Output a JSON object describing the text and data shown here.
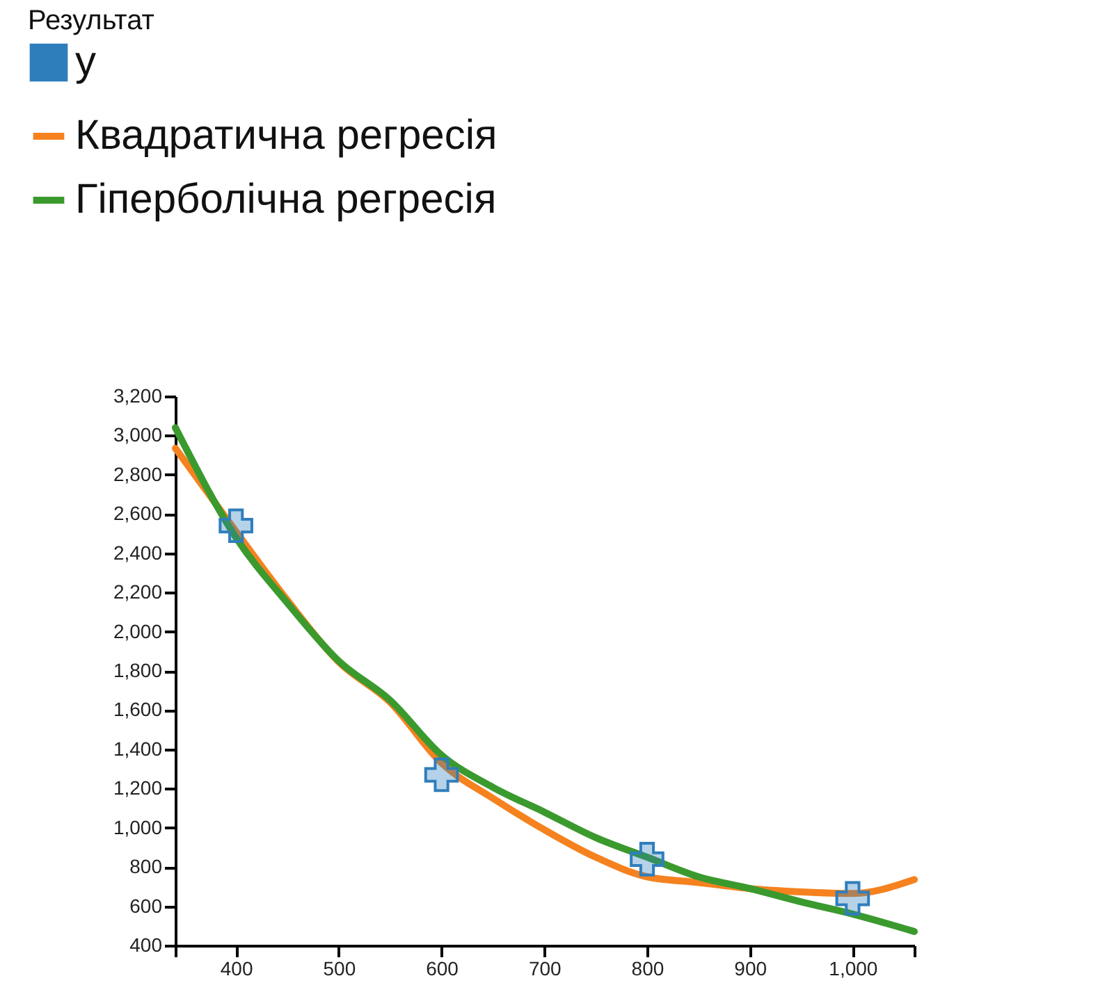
{
  "chart_data": {
    "type": "scatter",
    "legend_title": "Результат",
    "legend": "top left",
    "grid": false,
    "xlim": [
      341,
      1060
    ],
    "xticks": [
      {
        "value": 341,
        "label": null
      },
      400,
      500,
      600,
      700,
      800,
      900,
      {
        "value": 1000,
        "label": "1,000"
      },
      {
        "value": 1060,
        "label": null
      }
    ],
    "ylim": [
      400,
      3200
    ],
    "yticks": [
      400,
      600,
      800,
      {
        "value": 1000,
        "label": "1,000"
      },
      {
        "value": 1200,
        "label": "1,200"
      },
      {
        "value": 1400,
        "label": "1,400"
      },
      {
        "value": 1600,
        "label": "1,600"
      },
      {
        "value": 1800,
        "label": "1,800"
      },
      {
        "value": 2000,
        "label": "2,000"
      },
      {
        "value": 2200,
        "label": "2,200"
      },
      {
        "value": 2400,
        "label": "2,400"
      },
      {
        "value": 2600,
        "label": "2,600"
      },
      {
        "value": 2800,
        "label": "2,800"
      },
      {
        "value": 3000,
        "label": "3,000"
      },
      {
        "value": 3200,
        "label": "3,200"
      }
    ],
    "series": [
      {
        "name": "y",
        "type": "scatter",
        "marker": "cross",
        "color": "#2f7ebc",
        "x": [
          400,
          600,
          800,
          1000
        ],
        "values": [
          2540,
          1270,
          840,
          640
        ]
      },
      {
        "name": "Квадратична регресія",
        "type": "line",
        "line_style": "solid",
        "color": "#f5821f",
        "x": [
          341,
          400,
          450,
          500,
          550,
          600,
          650,
          700,
          750,
          800,
          850,
          900,
          950,
          1000,
          1060
        ],
        "values": [
          2935,
          2510,
          2160,
          1845,
          1640,
          1330,
          1150,
          990,
          850,
          750,
          721,
          690,
          673,
          665,
          736
        ]
      },
      {
        "name": "Гіперболічна регресія",
        "type": "line",
        "line_style": "solid",
        "color": "#3a9a2e",
        "x": [
          341,
          400,
          450,
          500,
          550,
          600,
          650,
          700,
          750,
          800,
          850,
          900,
          950,
          1000,
          1060
        ],
        "values": [
          3040,
          2480,
          2146,
          1850,
          1650,
          1370,
          1206,
          1080,
          950,
          850,
          750,
          690,
          622,
          560,
          471
        ]
      }
    ]
  }
}
